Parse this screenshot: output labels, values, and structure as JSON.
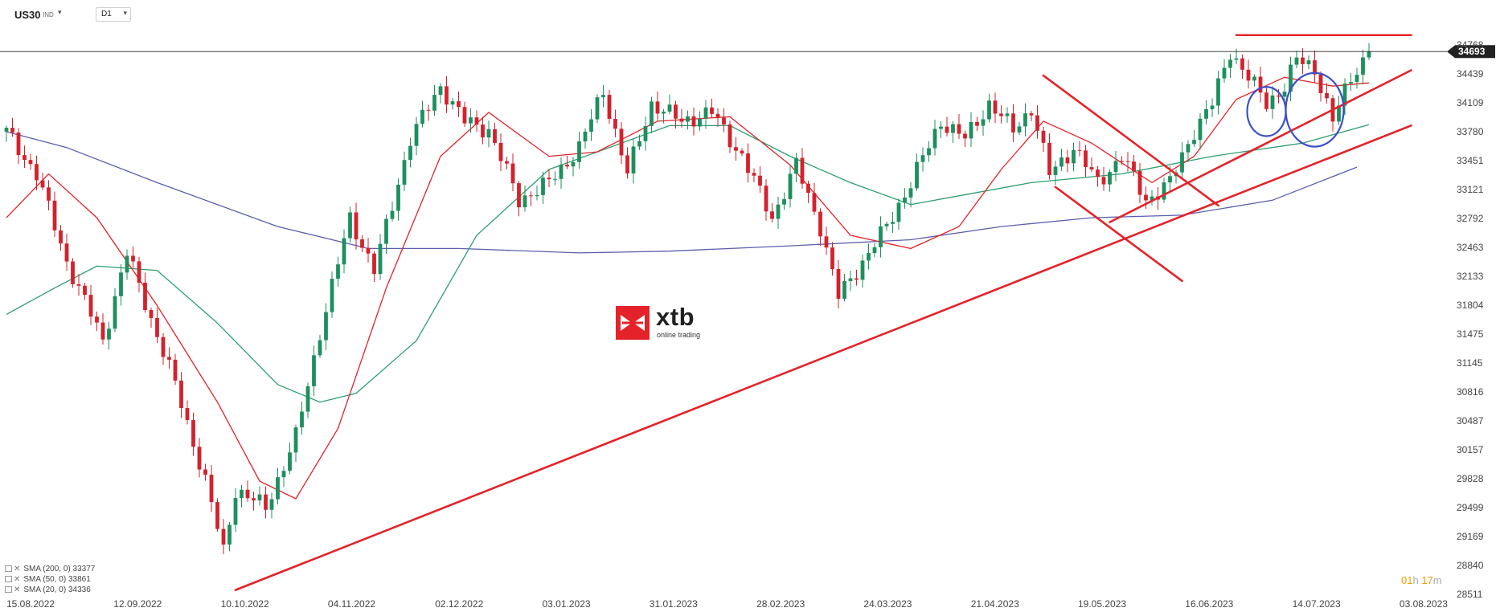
{
  "toolbar": {
    "symbol": "US30",
    "symbol_type": "IND",
    "timeframe": "D1"
  },
  "logo": {
    "name": "xtb",
    "tagline": "online trading"
  },
  "countdown": {
    "hours": "01",
    "hours_unit": "h",
    "minutes": "17",
    "minutes_unit": "m"
  },
  "indicators": [
    {
      "label": "SMA (200, 0) 33377",
      "color": "#5b5fad"
    },
    {
      "label": "SMA (50, 0) 33861",
      "color": "#2e9e6f"
    },
    {
      "label": "SMA (20, 0) 34336",
      "color": "#e32329"
    }
  ],
  "colors": {
    "bull": "#1e8f5e",
    "bear": "#d2222d",
    "trendline": "#e32329",
    "circle": "#3a4fc8",
    "current_price": "#222222"
  },
  "chart_data": {
    "type": "candlestick",
    "y_ticks": [
      34768,
      34439,
      34109,
      33780,
      33451,
      33121,
      32792,
      32463,
      32133,
      31804,
      31475,
      31145,
      30816,
      30487,
      30157,
      29828,
      29499,
      29169,
      28840,
      28511
    ],
    "x_ticks": [
      "15.08.2022",
      "12.09.2022",
      "10.10.2022",
      "04.11.2022",
      "02.12.2022",
      "03.01.2023",
      "31.01.2023",
      "28.02.2023",
      "24.03.2023",
      "21.04.2023",
      "19.05.2023",
      "16.06.2023",
      "14.07.2023",
      "03.08.2023"
    ],
    "ylim": [
      28511,
      34768
    ],
    "current_price": 34693,
    "close_path": [
      {
        "t": 0,
        "v": 33780
      },
      {
        "t": 5,
        "v": 33300
      },
      {
        "t": 10,
        "v": 32300
      },
      {
        "t": 16,
        "v": 31400
      },
      {
        "t": 20,
        "v": 32400
      },
      {
        "t": 28,
        "v": 30900
      },
      {
        "t": 33,
        "v": 29800
      },
      {
        "t": 36,
        "v": 29000
      },
      {
        "t": 38,
        "v": 29700
      },
      {
        "t": 43,
        "v": 29500
      },
      {
        "t": 48,
        "v": 30300
      },
      {
        "t": 52,
        "v": 31500
      },
      {
        "t": 57,
        "v": 32800
      },
      {
        "t": 61,
        "v": 32200
      },
      {
        "t": 67,
        "v": 33700
      },
      {
        "t": 72,
        "v": 34300
      },
      {
        "t": 76,
        "v": 33900
      },
      {
        "t": 80,
        "v": 33800
      },
      {
        "t": 85,
        "v": 33000
      },
      {
        "t": 90,
        "v": 33200
      },
      {
        "t": 95,
        "v": 33600
      },
      {
        "t": 99,
        "v": 34250
      },
      {
        "t": 103,
        "v": 33300
      },
      {
        "t": 107,
        "v": 34100
      },
      {
        "t": 112,
        "v": 33900
      },
      {
        "t": 117,
        "v": 34000
      },
      {
        "t": 122,
        "v": 33500
      },
      {
        "t": 127,
        "v": 32800
      },
      {
        "t": 131,
        "v": 33400
      },
      {
        "t": 135,
        "v": 32700
      },
      {
        "t": 138,
        "v": 31900
      },
      {
        "t": 142,
        "v": 32300
      },
      {
        "t": 146,
        "v": 32700
      },
      {
        "t": 150,
        "v": 33200
      },
      {
        "t": 155,
        "v": 33900
      },
      {
        "t": 159,
        "v": 33700
      },
      {
        "t": 163,
        "v": 34100
      },
      {
        "t": 167,
        "v": 33800
      },
      {
        "t": 170,
        "v": 34050
      },
      {
        "t": 173,
        "v": 33300
      },
      {
        "t": 177,
        "v": 33600
      },
      {
        "t": 181,
        "v": 33200
      },
      {
        "t": 185,
        "v": 33500
      },
      {
        "t": 189,
        "v": 33000
      },
      {
        "t": 193,
        "v": 33200
      },
      {
        "t": 197,
        "v": 33800
      },
      {
        "t": 200,
        "v": 34100
      },
      {
        "t": 203,
        "v": 34700
      },
      {
        "t": 206,
        "v": 34400
      },
      {
        "t": 209,
        "v": 34100
      },
      {
        "t": 212,
        "v": 34300
      },
      {
        "t": 214,
        "v": 34600
      },
      {
        "t": 217,
        "v": 34500
      },
      {
        "t": 220,
        "v": 33900
      },
      {
        "t": 223,
        "v": 34400
      },
      {
        "t": 226,
        "v": 34693
      }
    ],
    "sma": [
      {
        "name": "SMA (200, 0)",
        "points": [
          {
            "t": 0,
            "v": 33780
          },
          {
            "t": 10,
            "v": 33600
          },
          {
            "t": 25,
            "v": 33200
          },
          {
            "t": 45,
            "v": 32700
          },
          {
            "t": 60,
            "v": 32450
          },
          {
            "t": 75,
            "v": 32450
          },
          {
            "t": 95,
            "v": 32400
          },
          {
            "t": 110,
            "v": 32420
          },
          {
            "t": 130,
            "v": 32480
          },
          {
            "t": 150,
            "v": 32550
          },
          {
            "t": 165,
            "v": 32700
          },
          {
            "t": 180,
            "v": 32800
          },
          {
            "t": 195,
            "v": 32830
          },
          {
            "t": 210,
            "v": 33000
          },
          {
            "t": 224,
            "v": 33377
          }
        ]
      },
      {
        "name": "SMA (50, 0)",
        "points": [
          {
            "t": 0,
            "v": 31700
          },
          {
            "t": 8,
            "v": 32000
          },
          {
            "t": 15,
            "v": 32250
          },
          {
            "t": 25,
            "v": 32200
          },
          {
            "t": 35,
            "v": 31600
          },
          {
            "t": 45,
            "v": 30900
          },
          {
            "t": 52,
            "v": 30700
          },
          {
            "t": 58,
            "v": 30800
          },
          {
            "t": 68,
            "v": 31400
          },
          {
            "t": 78,
            "v": 32600
          },
          {
            "t": 90,
            "v": 33350
          },
          {
            "t": 100,
            "v": 33600
          },
          {
            "t": 110,
            "v": 33850
          },
          {
            "t": 120,
            "v": 33850
          },
          {
            "t": 130,
            "v": 33500
          },
          {
            "t": 140,
            "v": 33200
          },
          {
            "t": 150,
            "v": 32950
          },
          {
            "t": 158,
            "v": 33050
          },
          {
            "t": 170,
            "v": 33200
          },
          {
            "t": 185,
            "v": 33300
          },
          {
            "t": 200,
            "v": 33500
          },
          {
            "t": 215,
            "v": 33650
          },
          {
            "t": 226,
            "v": 33861
          }
        ]
      },
      {
        "name": "SMA (20, 0)",
        "points": [
          {
            "t": 0,
            "v": 32800
          },
          {
            "t": 7,
            "v": 33300
          },
          {
            "t": 15,
            "v": 32800
          },
          {
            "t": 25,
            "v": 31800
          },
          {
            "t": 35,
            "v": 30700
          },
          {
            "t": 42,
            "v": 29800
          },
          {
            "t": 48,
            "v": 29600
          },
          {
            "t": 55,
            "v": 30400
          },
          {
            "t": 63,
            "v": 32000
          },
          {
            "t": 72,
            "v": 33500
          },
          {
            "t": 80,
            "v": 34000
          },
          {
            "t": 90,
            "v": 33500
          },
          {
            "t": 98,
            "v": 33550
          },
          {
            "t": 108,
            "v": 33900
          },
          {
            "t": 120,
            "v": 33950
          },
          {
            "t": 130,
            "v": 33400
          },
          {
            "t": 140,
            "v": 32600
          },
          {
            "t": 150,
            "v": 32450
          },
          {
            "t": 158,
            "v": 32700
          },
          {
            "t": 165,
            "v": 33350
          },
          {
            "t": 172,
            "v": 33900
          },
          {
            "t": 180,
            "v": 33650
          },
          {
            "t": 190,
            "v": 33200
          },
          {
            "t": 197,
            "v": 33500
          },
          {
            "t": 204,
            "v": 34150
          },
          {
            "t": 212,
            "v": 34400
          },
          {
            "t": 220,
            "v": 34300
          },
          {
            "t": 226,
            "v": 34336
          }
        ]
      }
    ],
    "trendlines": [
      {
        "from": {
          "t": 38,
          "v": 28560
        },
        "to": {
          "t": 233,
          "v": 33850
        }
      },
      {
        "from": {
          "t": 183,
          "v": 32750
        },
        "to": {
          "t": 233,
          "v": 34480
        }
      },
      {
        "from": {
          "t": 172,
          "v": 34420
        },
        "to": {
          "t": 201,
          "v": 32940
        }
      },
      {
        "from": {
          "t": 174,
          "v": 33150
        },
        "to": {
          "t": 195,
          "v": 32080
        }
      },
      {
        "from": {
          "t": 204,
          "v": 34880
        },
        "to": {
          "t": 233,
          "v": 34880
        }
      }
    ],
    "ellipses": [
      {
        "t": 209,
        "v": 34010,
        "dt": 3.2,
        "dv": 280
      },
      {
        "t": 217,
        "v": 34030,
        "dt": 4.8,
        "dv": 420
      }
    ]
  }
}
